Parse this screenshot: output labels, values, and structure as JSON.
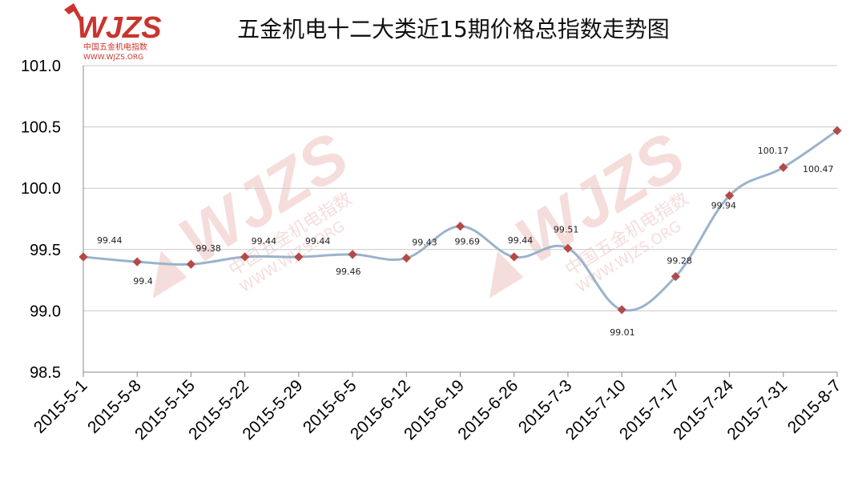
{
  "chart_data": {
    "type": "line",
    "title": "五金机电十二大类近15期价格总指数走势图",
    "categories": [
      "2015-5-1",
      "2015-5-8",
      "2015-5-15",
      "2015-5-22",
      "2015-5-29",
      "2015-6-5",
      "2015-6-12",
      "2015-6-19",
      "2015-6-26",
      "2015-7-3",
      "2015-7-10",
      "2015-7-17",
      "2015-7-24",
      "2015-7-31",
      "2015-8-7"
    ],
    "values": [
      99.44,
      99.4,
      99.38,
      99.44,
      99.44,
      99.46,
      99.43,
      99.69,
      99.44,
      99.51,
      99.01,
      99.28,
      99.94,
      100.17,
      100.47
    ],
    "data_labels": [
      "99.44",
      "99.4",
      "99.38",
      "99.44",
      "99.44",
      "99.46",
      "99.43",
      "99.69",
      "99.44",
      "99.51",
      "99.01",
      "99.28",
      "99.94",
      "100.17",
      "100.47"
    ],
    "ylim": [
      98.5,
      101.0
    ],
    "yticks": [
      "98.5",
      "99.0",
      "99.5",
      "100.0",
      "100.5",
      "101.0"
    ],
    "xlabel": "",
    "ylabel": "",
    "grid": "horizontal",
    "smooth": true,
    "colors": {
      "line": "#9ab3cc",
      "marker": "#b34a48",
      "grid": "#c8c8c8",
      "axis": "#888888"
    }
  },
  "logo": {
    "mark": "WJZS",
    "name_cn": "中国五金机电指数",
    "url": "WWW.WJZS.ORG",
    "color": "#c8352e"
  },
  "watermark": {
    "mark": "WJZS",
    "name_cn": "中国五金机电指数",
    "url": "WWW.WJZS.ORG"
  }
}
